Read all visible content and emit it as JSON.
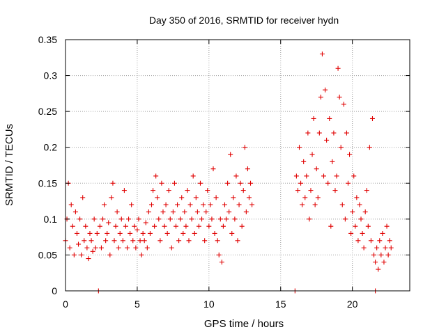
{
  "chart_data": {
    "type": "scatter",
    "title": "Day 350 of 2016, SRMTID for receiver hydn",
    "xlabel": "GPS time / hours",
    "ylabel": "SRMTID / TECUs",
    "xlim": [
      0,
      24
    ],
    "ylim": [
      0,
      0.35
    ],
    "xticks": [
      0,
      5,
      10,
      15,
      20
    ],
    "xtick_labels": [
      "0",
      "5",
      "10",
      "15",
      "20"
    ],
    "yticks": [
      0,
      0.05,
      0.1,
      0.15,
      0.2,
      0.25,
      0.3,
      0.35
    ],
    "ytick_labels": [
      "0",
      "0.05",
      "0.1",
      "0.15",
      "0.2",
      "0.25",
      "0.3",
      "0.35"
    ],
    "grid": true,
    "marker": "+",
    "series": [
      {
        "name": "SRMTID",
        "color": "#e00000",
        "x": [
          0.0,
          0.1,
          0.2,
          0.3,
          0.4,
          0.5,
          0.6,
          0.7,
          0.8,
          0.9,
          1.0,
          1.1,
          1.2,
          1.3,
          1.4,
          1.5,
          1.6,
          1.7,
          1.8,
          1.9,
          2.0,
          2.1,
          2.2,
          2.4,
          2.5,
          2.6,
          2.7,
          2.8,
          2.9,
          3.0,
          3.1,
          3.2,
          3.3,
          3.4,
          3.5,
          3.6,
          3.7,
          3.8,
          3.9,
          4.0,
          4.1,
          4.2,
          4.3,
          4.4,
          4.5,
          4.6,
          4.7,
          4.8,
          4.9,
          5.0,
          5.1,
          5.2,
          5.3,
          5.4,
          5.5,
          5.6,
          5.7,
          5.8,
          5.9,
          6.0,
          6.1,
          6.2,
          6.3,
          6.4,
          6.5,
          6.6,
          6.7,
          6.8,
          6.9,
          7.0,
          7.1,
          7.2,
          7.3,
          7.4,
          7.5,
          7.6,
          7.7,
          7.8,
          7.9,
          8.0,
          8.1,
          8.2,
          8.3,
          8.4,
          8.5,
          8.6,
          8.7,
          8.8,
          8.9,
          9.0,
          9.1,
          9.2,
          9.3,
          9.4,
          9.5,
          9.6,
          9.7,
          9.8,
          9.9,
          10.0,
          10.1,
          10.2,
          10.3,
          10.4,
          10.5,
          10.6,
          10.7,
          10.8,
          10.9,
          11.0,
          11.1,
          11.2,
          11.3,
          11.4,
          11.5,
          11.6,
          11.7,
          11.8,
          11.9,
          12.0,
          12.1,
          12.2,
          12.3,
          12.4,
          12.5,
          12.6,
          12.7,
          12.8,
          12.9,
          13.0,
          16.1,
          16.2,
          16.3,
          16.4,
          16.5,
          16.6,
          16.7,
          16.8,
          16.9,
          17.0,
          17.1,
          17.2,
          17.3,
          17.4,
          17.5,
          17.6,
          17.7,
          17.8,
          17.9,
          18.0,
          18.1,
          18.2,
          18.3,
          18.4,
          18.5,
          18.6,
          18.7,
          18.8,
          18.9,
          19.0,
          19.1,
          19.2,
          19.3,
          19.4,
          19.5,
          19.6,
          19.7,
          19.8,
          19.9,
          20.0,
          20.1,
          20.2,
          20.3,
          20.4,
          20.5,
          20.6,
          20.7,
          20.8,
          20.9,
          21.0,
          21.1,
          21.2,
          21.3,
          21.4,
          21.5,
          21.6,
          21.7,
          21.8,
          21.9,
          22.0,
          22.1,
          22.2,
          22.3,
          22.4,
          22.5,
          22.6,
          22.7,
          2.3,
          16.0,
          21.6
        ],
        "y": [
          0.07,
          0.1,
          0.15,
          0.06,
          0.12,
          0.09,
          0.05,
          0.11,
          0.08,
          0.065,
          0.1,
          0.05,
          0.13,
          0.07,
          0.09,
          0.06,
          0.045,
          0.08,
          0.07,
          0.055,
          0.1,
          0.06,
          0.08,
          0.09,
          0.06,
          0.1,
          0.12,
          0.07,
          0.08,
          0.095,
          0.05,
          0.13,
          0.15,
          0.07,
          0.09,
          0.11,
          0.06,
          0.08,
          0.1,
          0.07,
          0.14,
          0.09,
          0.06,
          0.1,
          0.08,
          0.12,
          0.07,
          0.09,
          0.06,
          0.085,
          0.1,
          0.07,
          0.05,
          0.08,
          0.07,
          0.095,
          0.06,
          0.11,
          0.08,
          0.12,
          0.14,
          0.09,
          0.16,
          0.13,
          0.1,
          0.07,
          0.15,
          0.11,
          0.09,
          0.12,
          0.08,
          0.14,
          0.1,
          0.06,
          0.11,
          0.15,
          0.09,
          0.12,
          0.07,
          0.1,
          0.13,
          0.08,
          0.11,
          0.09,
          0.14,
          0.07,
          0.12,
          0.1,
          0.16,
          0.08,
          0.13,
          0.11,
          0.09,
          0.15,
          0.1,
          0.12,
          0.07,
          0.11,
          0.14,
          0.09,
          0.12,
          0.1,
          0.17,
          0.08,
          0.13,
          0.07,
          0.05,
          0.1,
          0.04,
          0.09,
          0.12,
          0.1,
          0.15,
          0.11,
          0.19,
          0.08,
          0.13,
          0.1,
          0.16,
          0.07,
          0.12,
          0.15,
          0.09,
          0.14,
          0.2,
          0.11,
          0.17,
          0.13,
          0.15,
          0.12,
          0.16,
          0.14,
          0.2,
          0.15,
          0.12,
          0.18,
          0.13,
          0.16,
          0.22,
          0.1,
          0.14,
          0.19,
          0.24,
          0.12,
          0.17,
          0.13,
          0.22,
          0.27,
          0.33,
          0.16,
          0.28,
          0.21,
          0.15,
          0.24,
          0.09,
          0.18,
          0.22,
          0.14,
          0.16,
          0.31,
          0.27,
          0.2,
          0.12,
          0.26,
          0.1,
          0.22,
          0.15,
          0.19,
          0.08,
          0.11,
          0.16,
          0.09,
          0.13,
          0.07,
          0.12,
          0.1,
          0.08,
          0.06,
          0.11,
          0.14,
          0.09,
          0.2,
          0.07,
          0.24,
          0.05,
          0.04,
          0.06,
          0.03,
          0.07,
          0.05,
          0.08,
          0.04,
          0.06,
          0.09,
          0.05,
          0.07,
          0.06,
          0.0,
          0.0,
          0.0
        ]
      }
    ]
  }
}
